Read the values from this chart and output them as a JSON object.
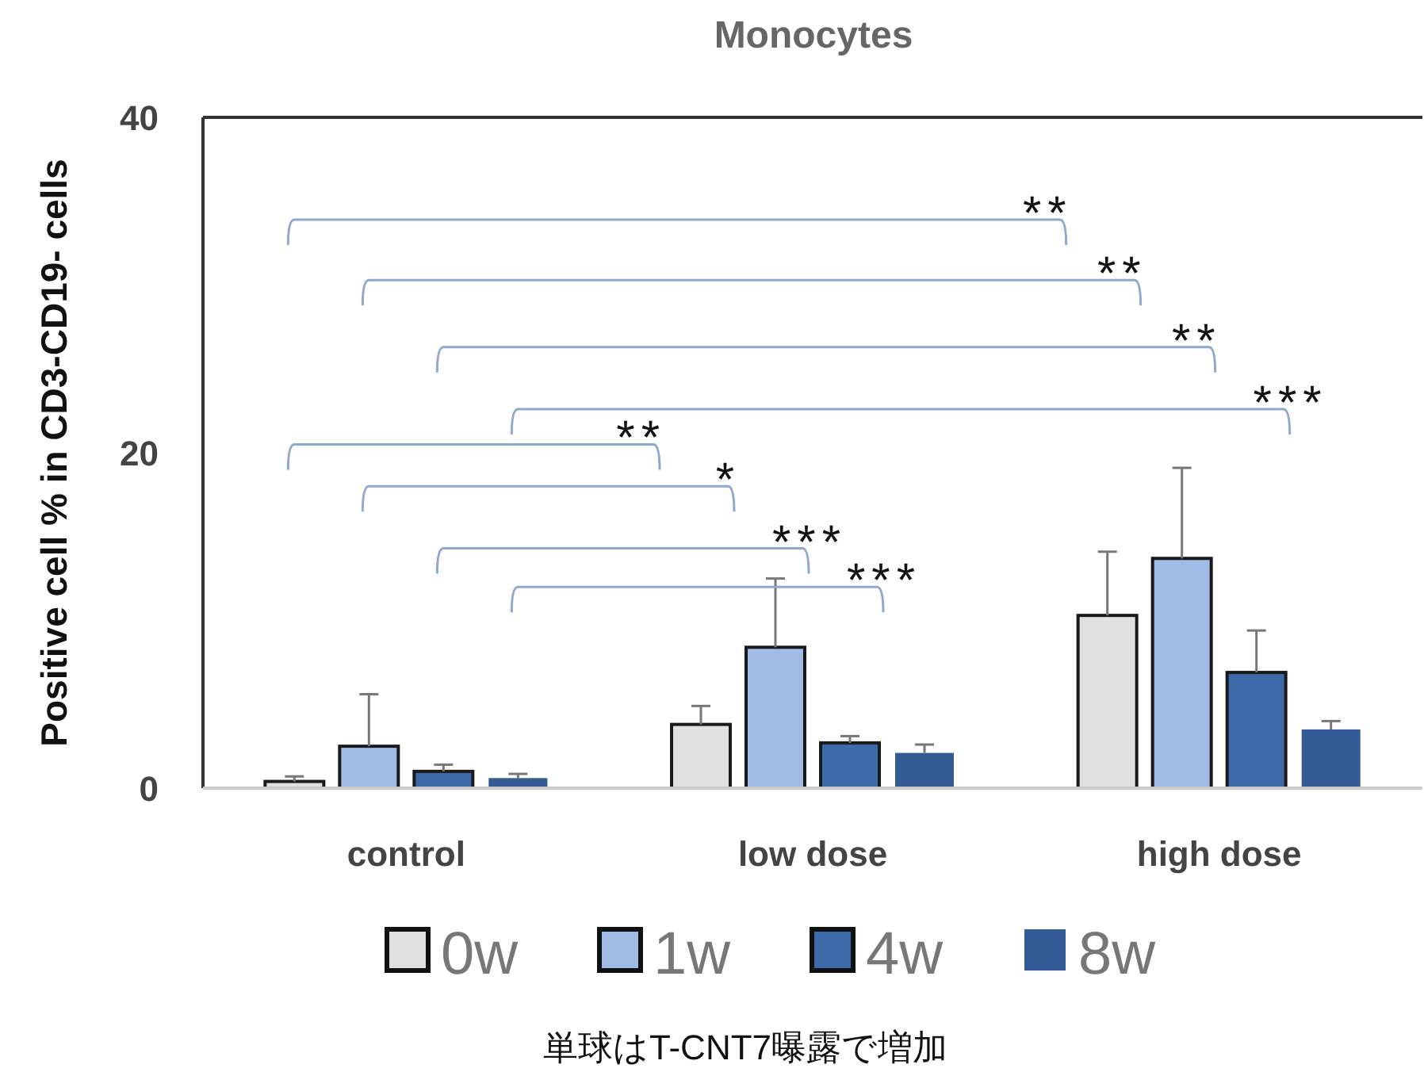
{
  "chart_data": {
    "type": "bar",
    "title": "Monocytes",
    "ylabel": "Positive cell % in CD3-CD19- cells",
    "categories": [
      "control",
      "low dose",
      "high dose"
    ],
    "series": [
      {
        "name": "0w",
        "color": "#e0e0e0",
        "values": [
          0.4,
          3.8,
          10.3
        ],
        "errors": [
          [
            0.4,
            0.7
          ],
          [
            3.8,
            4.9
          ],
          [
            10.3,
            14.1
          ]
        ]
      },
      {
        "name": "1w",
        "color": "#a0bce6",
        "values": [
          2.5,
          8.4,
          13.7
        ],
        "errors": [
          [
            2.5,
            5.6
          ],
          [
            8.4,
            12.5
          ],
          [
            13.7,
            19.1
          ]
        ]
      },
      {
        "name": "4w",
        "color": "#3d6aa8",
        "values": [
          1.0,
          2.7,
          6.9
        ],
        "errors": [
          [
            1.0,
            1.4
          ],
          [
            2.7,
            3.1
          ],
          [
            6.9,
            9.4
          ]
        ]
      },
      {
        "name": "8w",
        "color": "#345c94",
        "values": [
          0.6,
          2.1,
          3.5
        ],
        "errors": [
          [
            0.6,
            0.85
          ],
          [
            2.1,
            2.6
          ],
          [
            3.5,
            4.0
          ]
        ]
      }
    ],
    "ylim": [
      0,
      40
    ],
    "yticks": [
      0,
      20,
      40
    ],
    "grid": false,
    "legend": "bottom",
    "annotations": [
      "**",
      "**",
      "**",
      "***",
      "**",
      "*",
      "***",
      "***",
      "単球はT-CNT7曝露で増加"
    ]
  }
}
